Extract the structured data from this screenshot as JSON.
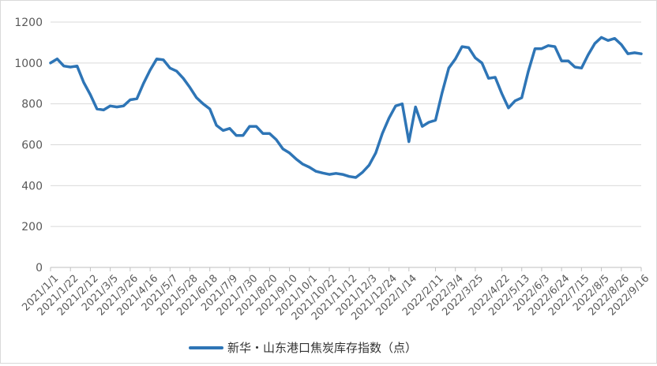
{
  "chart_data": {
    "type": "line",
    "title": "",
    "xlabel": "",
    "ylabel": "",
    "ylim": [
      0,
      1200
    ],
    "yticks": [
      0,
      200,
      400,
      600,
      800,
      1000,
      1200
    ],
    "grid": "horizontal",
    "legend_position": "bottom",
    "line_color": "#2e75b6",
    "x_tick_labels": [
      "2021/1/1",
      "2021/1/22",
      "2021/2/12",
      "2021/3/5",
      "2021/3/26",
      "2021/4/16",
      "2021/5/7",
      "2021/5/28",
      "2021/6/18",
      "2021/7/9",
      "2021/7/30",
      "2021/8/20",
      "2021/9/10",
      "2021/10/1",
      "2021/10/22",
      "2021/11/12",
      "2021/12/3",
      "2021/12/24",
      "2022/1/14",
      "2022/2/11",
      "2022/3/4",
      "2022/3/25",
      "2022/4/22",
      "2022/5/13",
      "2022/6/3",
      "2022/6/24",
      "2022/7/15",
      "2022/8/5",
      "2022/8/26",
      "2022/9/16"
    ],
    "series": [
      {
        "name": "新华・山东港口焦炭库存指数（点）",
        "x": [
          "2021/1/1",
          "2021/1/8",
          "2021/1/15",
          "2021/1/22",
          "2021/1/29",
          "2021/2/5",
          "2021/2/12",
          "2021/2/19",
          "2021/2/26",
          "2021/3/5",
          "2021/3/12",
          "2021/3/19",
          "2021/3/26",
          "2021/4/2",
          "2021/4/9",
          "2021/4/16",
          "2021/4/23",
          "2021/4/30",
          "2021/5/7",
          "2021/5/14",
          "2021/5/21",
          "2021/5/28",
          "2021/6/4",
          "2021/6/11",
          "2021/6/18",
          "2021/6/25",
          "2021/7/2",
          "2021/7/9",
          "2021/7/16",
          "2021/7/23",
          "2021/7/30",
          "2021/8/6",
          "2021/8/13",
          "2021/8/20",
          "2021/8/27",
          "2021/9/3",
          "2021/9/10",
          "2021/9/17",
          "2021/9/24",
          "2021/10/1",
          "2021/10/8",
          "2021/10/15",
          "2021/10/22",
          "2021/10/29",
          "2021/11/5",
          "2021/11/12",
          "2021/11/19",
          "2021/11/26",
          "2021/12/3",
          "2021/12/10",
          "2021/12/17",
          "2021/12/24",
          "2021/12/31",
          "2022/1/7",
          "2022/1/14",
          "2022/1/21",
          "2022/1/28",
          "2022/2/4",
          "2022/2/11",
          "2022/2/18",
          "2022/2/25",
          "2022/3/4",
          "2022/3/11",
          "2022/3/18",
          "2022/3/25",
          "2022/4/1",
          "2022/4/8",
          "2022/4/15",
          "2022/4/22",
          "2022/4/29",
          "2022/5/6",
          "2022/5/13",
          "2022/5/20",
          "2022/5/27",
          "2022/6/3",
          "2022/6/10",
          "2022/6/17",
          "2022/6/24",
          "2022/7/1",
          "2022/7/8",
          "2022/7/15",
          "2022/7/22",
          "2022/7/29",
          "2022/8/5",
          "2022/8/12",
          "2022/8/19",
          "2022/8/26",
          "2022/9/2",
          "2022/9/9",
          "2022/9/16"
        ],
        "values": [
          1000,
          1020,
          985,
          980,
          985,
          905,
          845,
          775,
          770,
          790,
          785,
          790,
          820,
          825,
          900,
          965,
          1020,
          1015,
          975,
          960,
          925,
          880,
          830,
          800,
          775,
          695,
          670,
          680,
          645,
          645,
          690,
          690,
          655,
          655,
          625,
          580,
          560,
          530,
          505,
          490,
          470,
          462,
          455,
          460,
          455,
          445,
          440,
          465,
          500,
          560,
          655,
          730,
          790,
          800,
          615,
          785,
          690,
          710,
          720,
          855,
          975,
          1020,
          1080,
          1075,
          1025,
          1000,
          925,
          930,
          850,
          780,
          815,
          830,
          960,
          1070,
          1070,
          1085,
          1080,
          1010,
          1010,
          980,
          975,
          1040,
          1095,
          1125,
          1110,
          1120,
          1090,
          1045,
          1050,
          1045
        ]
      }
    ]
  }
}
